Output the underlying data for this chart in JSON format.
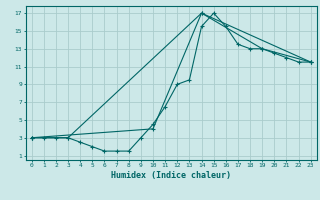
{
  "xlabel": "Humidex (Indice chaleur)",
  "ylabel": "",
  "bg_color": "#cce8e8",
  "grid_color": "#aacccc",
  "line_color": "#006666",
  "xlim": [
    -0.5,
    23.5
  ],
  "ylim": [
    0.5,
    17.8
  ],
  "xticks": [
    0,
    1,
    2,
    3,
    4,
    5,
    6,
    7,
    8,
    9,
    10,
    11,
    12,
    13,
    14,
    15,
    16,
    17,
    18,
    19,
    20,
    21,
    22,
    23
  ],
  "yticks": [
    1,
    3,
    5,
    7,
    9,
    11,
    13,
    15,
    17
  ],
  "line1_x": [
    0,
    1,
    2,
    3,
    4,
    5,
    6,
    7,
    8,
    9,
    10,
    11,
    12,
    13,
    14,
    15,
    16,
    17,
    18,
    19,
    20,
    21,
    22,
    23
  ],
  "line1_y": [
    3,
    3,
    3,
    3,
    2.5,
    2,
    1.5,
    1.5,
    1.5,
    3,
    4.5,
    6.5,
    9,
    9.5,
    15.5,
    17,
    15.5,
    13.5,
    13,
    13,
    12.5,
    12,
    11.5,
    11.5
  ],
  "line2_x": [
    0,
    3,
    14,
    23
  ],
  "line2_y": [
    3,
    3,
    17,
    11.5
  ],
  "line3_x": [
    0,
    10,
    14,
    19,
    23
  ],
  "line3_y": [
    3,
    4,
    17,
    13,
    11.5
  ]
}
